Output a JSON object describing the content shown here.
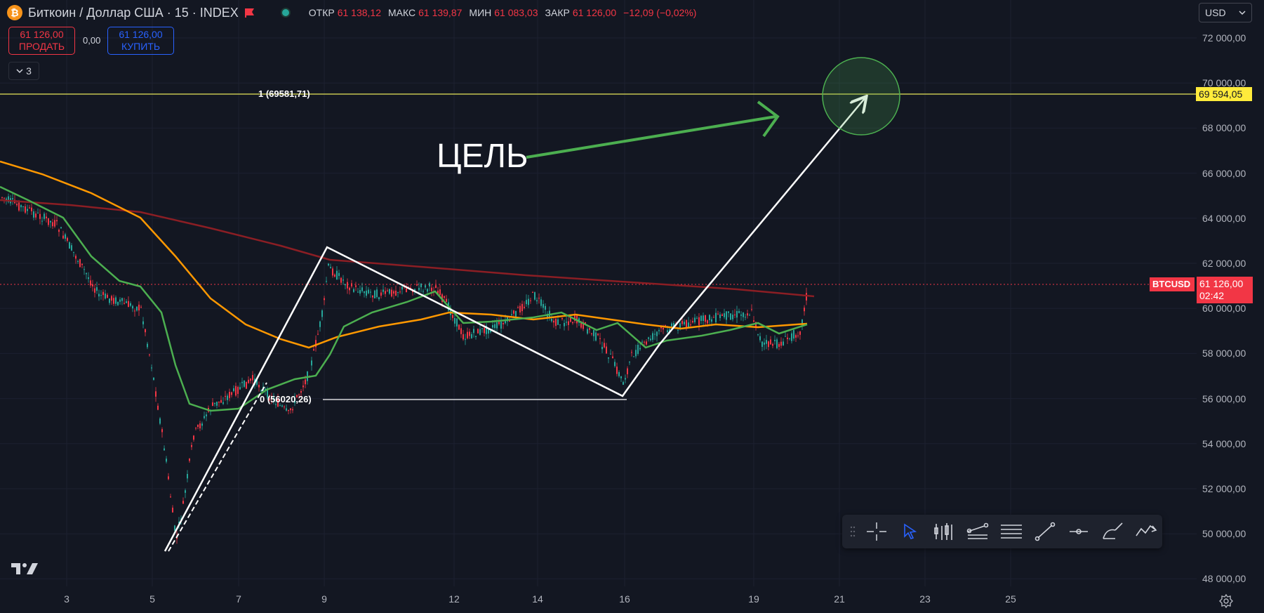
{
  "header": {
    "symbol_title": "Биткоин / Доллар США · 15 · INDEX",
    "btc_logo_glyph": "₿",
    "ohlc": [
      {
        "label": "ОТКР",
        "value": "61 138,12"
      },
      {
        "label": "МАКС",
        "value": "61 139,87"
      },
      {
        "label": "МИН",
        "value": "61 083,03"
      },
      {
        "label": "ЗАКР",
        "value": "61 126,00"
      }
    ],
    "change": "−12,09 (−0,02%)"
  },
  "trade": {
    "sell_price": "61 126,00",
    "sell_label": "ПРОДАТЬ",
    "spread": "0,00",
    "buy_price": "61 126,00",
    "buy_label": "КУПИТЬ"
  },
  "indicators_count": "3",
  "currency": "USD",
  "price_axis": [
    "72 000,00",
    "70 000,00",
    "68 000,00",
    "66 000,00",
    "64 000,00",
    "62 000,00",
    "60 000,00",
    "58 000,00",
    "56 000,00",
    "54 000,00",
    "52 000,00",
    "50 000,00",
    "48 000,00"
  ],
  "date_axis": [
    "3",
    "5",
    "7",
    "9",
    "12",
    "14",
    "16",
    "19",
    "21",
    "23",
    "25"
  ],
  "tags": {
    "target_level": "69 594,05",
    "symbol": "BTCUSD",
    "last_price": "61 126,00",
    "countdown": "02:42"
  },
  "fib": {
    "level1": "1 (69581,71)",
    "level0": "0 (56020,26)"
  },
  "annotation_text": "ЦЕЛЬ",
  "colors": {
    "background": "#131722",
    "down": "#f23645",
    "up": "#26a69a",
    "ma_green": "#4caf50",
    "ma_orange": "#ff9800",
    "ma_darkred": "#8b1e24",
    "fib_line": "#e6e65a",
    "accent_blue": "#2962ff"
  },
  "toolbar_icons": [
    "drag-grip-icon",
    "crosshair-icon",
    "cursor-arrow-icon",
    "bars-icon",
    "trend-channel-icon",
    "horizontal-lines-icon",
    "trend-line-icon",
    "horizontal-ray-icon",
    "brush-icon",
    "path-icon"
  ]
}
